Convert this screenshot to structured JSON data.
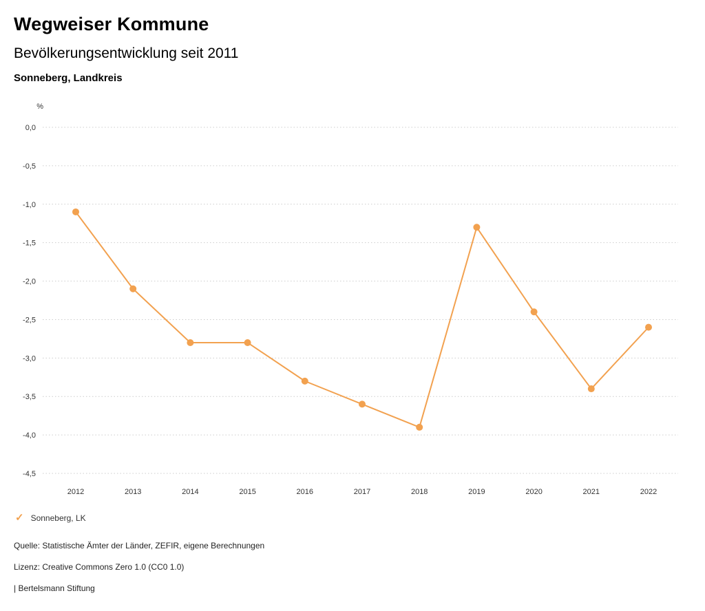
{
  "header": {
    "title": "Wegweiser Kommune",
    "subtitle": "Bevölkerungsentwicklung seit 2011",
    "region": "Sonneberg, Landkreis"
  },
  "chart_data": {
    "type": "line",
    "title": "Bevölkerungsentwicklung seit 2011",
    "unit_label": "%",
    "x": [
      "2012",
      "2013",
      "2014",
      "2015",
      "2016",
      "2017",
      "2018",
      "2019",
      "2020",
      "2021",
      "2022"
    ],
    "series": [
      {
        "name": "Sonneberg, LK",
        "values": [
          -1.1,
          -2.1,
          -2.8,
          -2.8,
          -3.3,
          -3.6,
          -3.9,
          -1.3,
          -2.4,
          -3.4,
          -2.6
        ]
      }
    ],
    "ylim": [
      -4.5,
      0
    ],
    "y_ticks": [
      0,
      -0.5,
      -1.0,
      -1.5,
      -2.0,
      -2.5,
      -3.0,
      -3.5,
      -4.0,
      -4.5
    ],
    "y_tick_labels": [
      "0,0",
      "-0,5",
      "-1,0",
      "-1,5",
      "-2,0",
      "-2,5",
      "-3,0",
      "-3,5",
      "-4,0",
      "-4,5"
    ],
    "grid": "horizontal-dotted",
    "line_color": "#f2a14f",
    "marker": "circle",
    "legend_position": "bottom-left"
  },
  "legend": {
    "icon": "check-icon",
    "label": "Sonneberg, LK"
  },
  "footer": {
    "source": "Quelle: Statistische Ämter der Länder, ZEFIR, eigene Berechnungen",
    "license": "Lizenz: Creative Commons Zero 1.0 (CC0 1.0)",
    "attribution": "| Bertelsmann Stiftung"
  }
}
